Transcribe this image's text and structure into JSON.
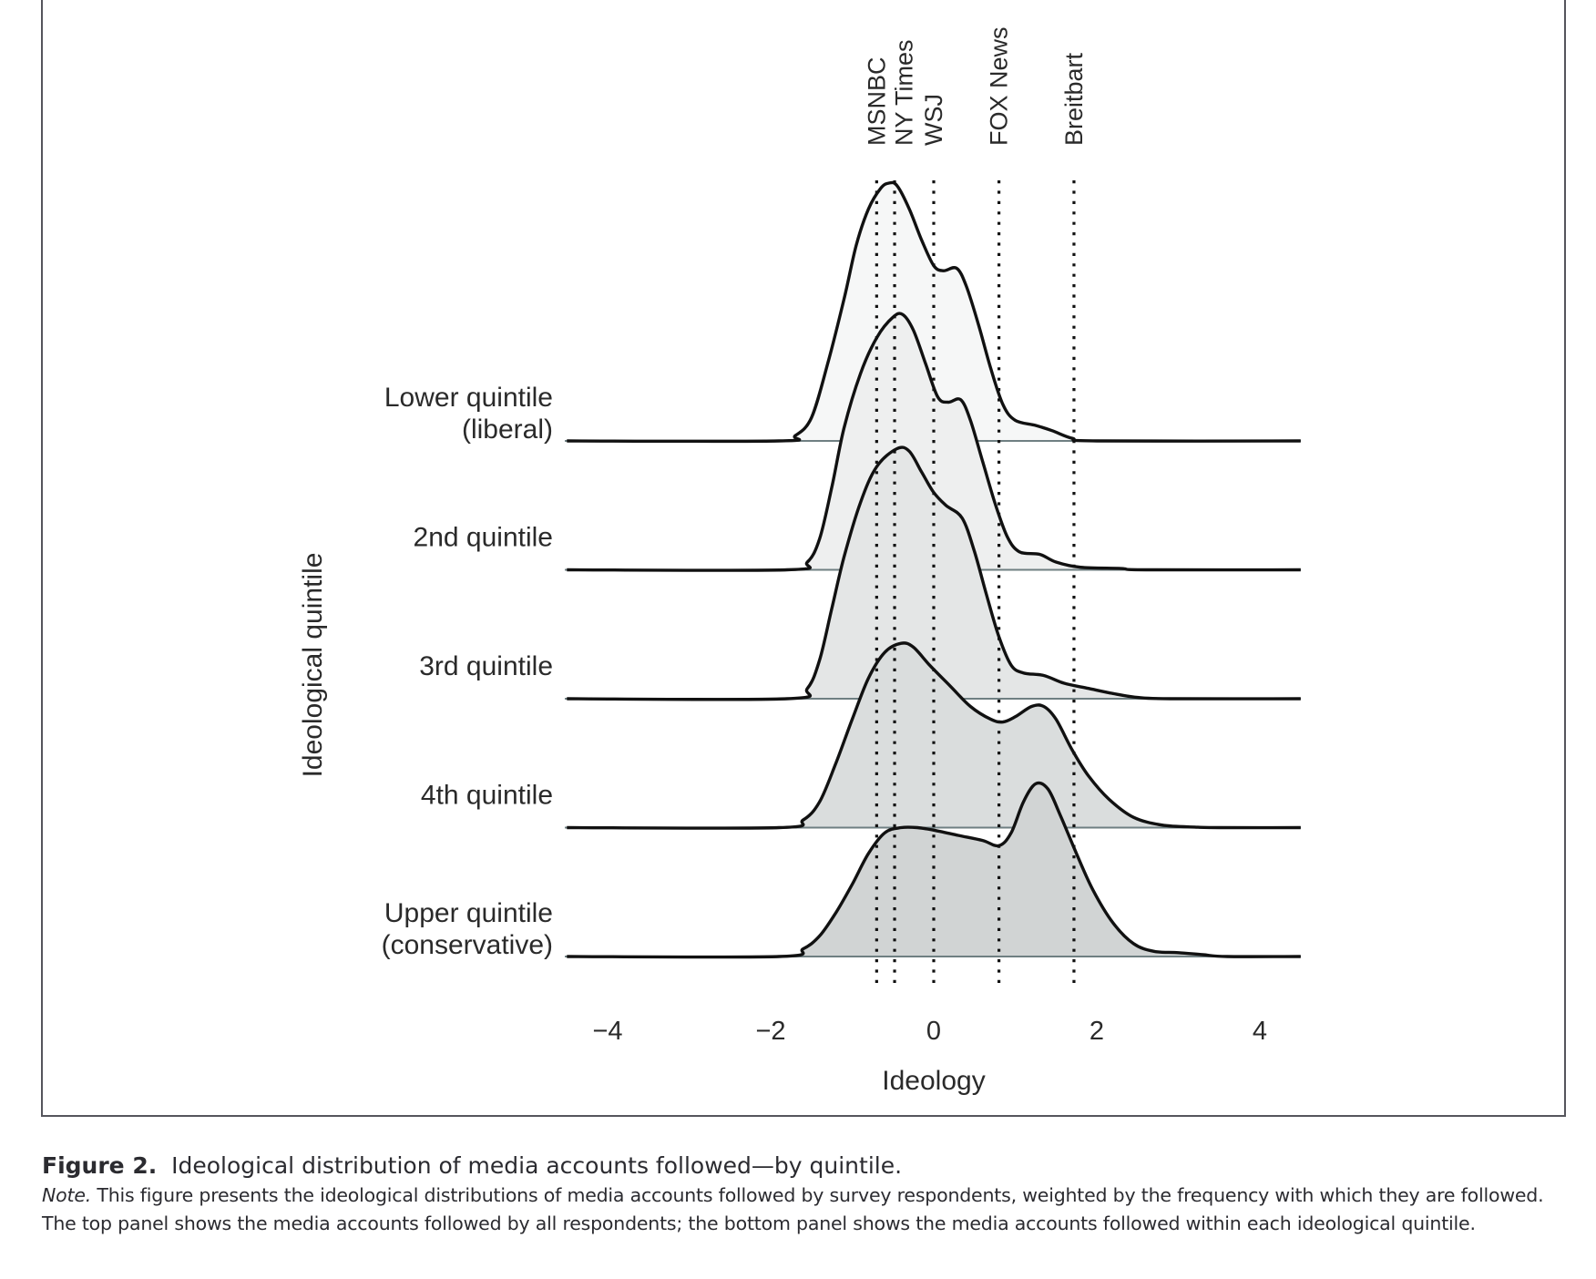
{
  "chart_data": {
    "type": "ridgeline",
    "title": "",
    "xlabel": "Ideology",
    "ylabel": "Ideological quintile",
    "xlim": [
      -4.5,
      4.5
    ],
    "xticks": [
      -4,
      -2,
      0,
      2,
      4
    ],
    "xtick_labels": [
      "−4",
      "−2",
      "0",
      "2",
      "4"
    ],
    "grid": false,
    "y_units": "relative density (peak of lower quintile = 1.0)",
    "reference_lines": [
      {
        "label": "MSNBC",
        "x": -0.7
      },
      {
        "label": "NY Times",
        "x": -0.48
      },
      {
        "label": "WSJ",
        "x": 0.0
      },
      {
        "label": "FOX News",
        "x": 0.8
      },
      {
        "label": "Breitbart",
        "x": 1.72
      }
    ],
    "series": [
      {
        "name": "Lower quintile (liberal)",
        "label_lines": [
          "Lower quintile",
          "(liberal)"
        ],
        "fill": "#f6f7f7",
        "points": [
          [
            -4.5,
            0
          ],
          [
            -1.9,
            0
          ],
          [
            -1.7,
            0.02
          ],
          [
            -1.5,
            0.09
          ],
          [
            -1.3,
            0.3
          ],
          [
            -1.1,
            0.55
          ],
          [
            -0.95,
            0.76
          ],
          [
            -0.8,
            0.9
          ],
          [
            -0.65,
            0.98
          ],
          [
            -0.55,
            1.0
          ],
          [
            -0.45,
            0.99
          ],
          [
            -0.3,
            0.9
          ],
          [
            -0.15,
            0.78
          ],
          [
            0.0,
            0.68
          ],
          [
            0.12,
            0.66
          ],
          [
            0.28,
            0.67
          ],
          [
            0.4,
            0.6
          ],
          [
            0.55,
            0.45
          ],
          [
            0.7,
            0.28
          ],
          [
            0.85,
            0.14
          ],
          [
            1.0,
            0.08
          ],
          [
            1.25,
            0.06
          ],
          [
            1.45,
            0.04
          ],
          [
            1.7,
            0.01
          ],
          [
            2.0,
            0
          ],
          [
            4.5,
            0
          ]
        ]
      },
      {
        "name": "2nd quintile",
        "label_lines": [
          "2nd quintile"
        ],
        "fill": "#eeefef",
        "points": [
          [
            -4.5,
            0
          ],
          [
            -1.8,
            0
          ],
          [
            -1.55,
            0.03
          ],
          [
            -1.4,
            0.12
          ],
          [
            -1.25,
            0.32
          ],
          [
            -1.1,
            0.55
          ],
          [
            -0.9,
            0.76
          ],
          [
            -0.7,
            0.9
          ],
          [
            -0.5,
            0.98
          ],
          [
            -0.38,
            0.99
          ],
          [
            -0.25,
            0.93
          ],
          [
            -0.1,
            0.8
          ],
          [
            0.05,
            0.67
          ],
          [
            0.18,
            0.65
          ],
          [
            0.33,
            0.66
          ],
          [
            0.45,
            0.58
          ],
          [
            0.6,
            0.42
          ],
          [
            0.75,
            0.26
          ],
          [
            0.9,
            0.13
          ],
          [
            1.05,
            0.07
          ],
          [
            1.3,
            0.06
          ],
          [
            1.5,
            0.03
          ],
          [
            1.8,
            0.01
          ],
          [
            2.3,
            0.005
          ],
          [
            2.6,
            0
          ],
          [
            4.5,
            0
          ]
        ]
      },
      {
        "name": "3rd quintile",
        "label_lines": [
          "3rd quintile"
        ],
        "fill": "#e4e6e6",
        "points": [
          [
            -4.5,
            0
          ],
          [
            -1.8,
            0
          ],
          [
            -1.55,
            0.04
          ],
          [
            -1.4,
            0.15
          ],
          [
            -1.25,
            0.35
          ],
          [
            -1.1,
            0.55
          ],
          [
            -0.9,
            0.76
          ],
          [
            -0.7,
            0.9
          ],
          [
            -0.45,
            0.97
          ],
          [
            -0.3,
            0.96
          ],
          [
            -0.15,
            0.88
          ],
          [
            0.0,
            0.8
          ],
          [
            0.15,
            0.75
          ],
          [
            0.35,
            0.7
          ],
          [
            0.5,
            0.57
          ],
          [
            0.65,
            0.4
          ],
          [
            0.8,
            0.24
          ],
          [
            0.95,
            0.13
          ],
          [
            1.1,
            0.1
          ],
          [
            1.35,
            0.09
          ],
          [
            1.6,
            0.06
          ],
          [
            1.9,
            0.04
          ],
          [
            2.2,
            0.02
          ],
          [
            2.5,
            0.005
          ],
          [
            2.9,
            0
          ],
          [
            4.5,
            0
          ]
        ]
      },
      {
        "name": "4th quintile",
        "label_lines": [
          "4th quintile"
        ],
        "fill": "#dadddd",
        "points": [
          [
            -4.5,
            0
          ],
          [
            -1.9,
            0
          ],
          [
            -1.6,
            0.03
          ],
          [
            -1.4,
            0.1
          ],
          [
            -1.2,
            0.25
          ],
          [
            -1.0,
            0.42
          ],
          [
            -0.8,
            0.58
          ],
          [
            -0.6,
            0.68
          ],
          [
            -0.4,
            0.715
          ],
          [
            -0.25,
            0.7
          ],
          [
            -0.05,
            0.63
          ],
          [
            0.2,
            0.55
          ],
          [
            0.45,
            0.47
          ],
          [
            0.7,
            0.42
          ],
          [
            0.85,
            0.41
          ],
          [
            1.0,
            0.43
          ],
          [
            1.2,
            0.47
          ],
          [
            1.35,
            0.47
          ],
          [
            1.5,
            0.42
          ],
          [
            1.7,
            0.3
          ],
          [
            1.9,
            0.2
          ],
          [
            2.15,
            0.11
          ],
          [
            2.45,
            0.04
          ],
          [
            2.8,
            0.01
          ],
          [
            3.2,
            0.002
          ],
          [
            3.5,
            0
          ],
          [
            4.5,
            0
          ]
        ]
      },
      {
        "name": "Upper quintile (conservative)",
        "label_lines": [
          "Upper quintile",
          "(conservative)"
        ],
        "fill": "#d1d4d4",
        "points": [
          [
            -4.5,
            0
          ],
          [
            -1.9,
            0
          ],
          [
            -1.6,
            0.03
          ],
          [
            -1.4,
            0.08
          ],
          [
            -1.2,
            0.17
          ],
          [
            -1.0,
            0.28
          ],
          [
            -0.8,
            0.4
          ],
          [
            -0.6,
            0.48
          ],
          [
            -0.4,
            0.5
          ],
          [
            -0.2,
            0.5
          ],
          [
            0.0,
            0.49
          ],
          [
            0.3,
            0.47
          ],
          [
            0.6,
            0.45
          ],
          [
            0.8,
            0.43
          ],
          [
            0.95,
            0.48
          ],
          [
            1.1,
            0.6
          ],
          [
            1.25,
            0.67
          ],
          [
            1.4,
            0.65
          ],
          [
            1.55,
            0.55
          ],
          [
            1.75,
            0.4
          ],
          [
            1.95,
            0.26
          ],
          [
            2.2,
            0.13
          ],
          [
            2.45,
            0.05
          ],
          [
            2.7,
            0.02
          ],
          [
            3.0,
            0.015
          ],
          [
            3.3,
            0.007
          ],
          [
            3.6,
            0
          ],
          [
            4.5,
            0
          ]
        ]
      }
    ]
  },
  "caption": {
    "figure_label": "Figure 2.",
    "title": "Ideological distribution of media accounts followed—by quintile.",
    "note_label": "Note.",
    "note_text": "This figure presents the ideological distributions of media accounts followed by survey respondents, weighted by the frequency with which they are followed. The top panel shows the media accounts followed by all respondents; the bottom panel shows the media accounts followed within each ideological quintile."
  }
}
